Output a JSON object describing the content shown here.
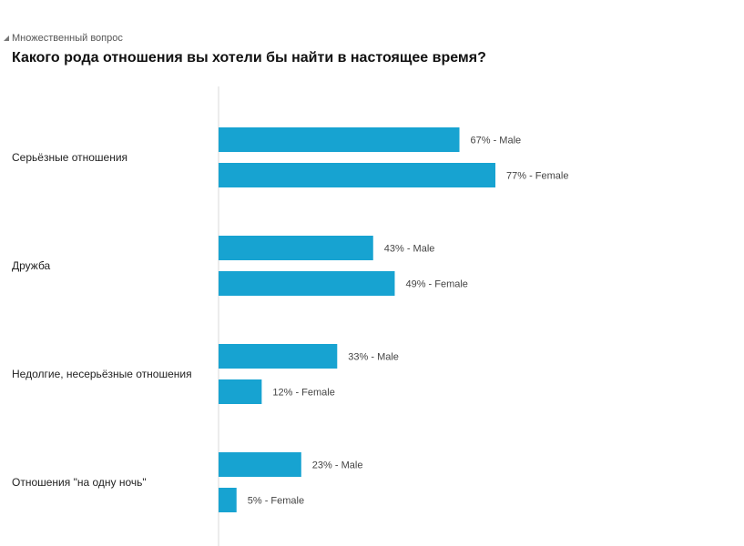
{
  "header": {
    "question_type": "Множественный вопрос",
    "question": "Какого рода отношения вы хотели бы найти в настоящее время?"
  },
  "colors": {
    "bar": "#17a3d1",
    "axis": "#d9d9d9"
  },
  "icons": {
    "question_type": "corner-triangle-icon"
  },
  "chart_data": {
    "type": "bar",
    "orientation": "horizontal",
    "categories": [
      "Серьёзные отношения",
      "Дружба",
      "Недолгие, несерьёзные отношения",
      "Отношения \"на одну ночь\""
    ],
    "series": [
      {
        "name": "Male",
        "values": [
          67,
          43,
          33,
          23
        ]
      },
      {
        "name": "Female",
        "values": [
          77,
          49,
          12,
          5
        ]
      }
    ],
    "value_suffix": "%",
    "label_separator": " - ",
    "xlim": [
      0,
      100
    ],
    "grid": false,
    "legend": "none"
  }
}
